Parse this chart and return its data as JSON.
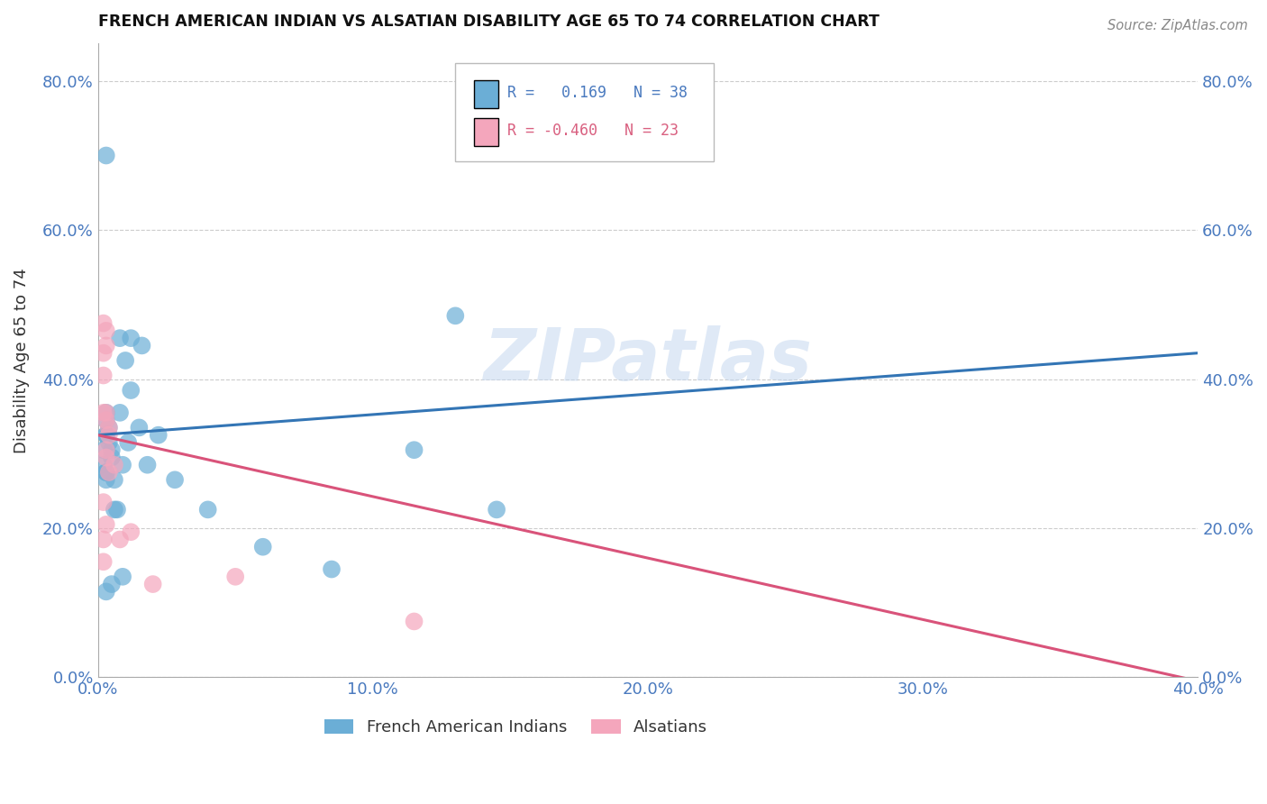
{
  "title": "FRENCH AMERICAN INDIAN VS ALSATIAN DISABILITY AGE 65 TO 74 CORRELATION CHART",
  "source": "Source: ZipAtlas.com",
  "ylabel": "Disability Age 65 to 74",
  "xlim": [
    0.0,
    0.4
  ],
  "ylim": [
    0.0,
    0.85
  ],
  "blue_color": "#6baed6",
  "pink_color": "#f4a6bc",
  "line_blue": "#3375b5",
  "line_pink": "#d9537a",
  "watermark_text": "ZIPatlas",
  "tick_color": "#4a7abf",
  "blue_line_x0": 0.0,
  "blue_line_y0": 0.325,
  "blue_line_x1": 0.4,
  "blue_line_y1": 0.435,
  "pink_line_x0": 0.0,
  "pink_line_y0": 0.325,
  "pink_line_x1": 0.4,
  "pink_line_y1": -0.005,
  "blue_points_x": [
    0.003,
    0.008,
    0.012,
    0.016,
    0.003,
    0.002,
    0.003,
    0.003,
    0.004,
    0.003,
    0.004,
    0.005,
    0.005,
    0.003,
    0.006,
    0.008,
    0.01,
    0.012,
    0.015,
    0.006,
    0.009,
    0.011,
    0.007,
    0.009,
    0.002,
    0.003,
    0.003,
    0.018,
    0.022,
    0.028,
    0.04,
    0.06,
    0.085,
    0.115,
    0.145,
    0.13,
    0.003,
    0.005
  ],
  "blue_points_y": [
    0.7,
    0.455,
    0.455,
    0.445,
    0.355,
    0.305,
    0.325,
    0.325,
    0.335,
    0.345,
    0.315,
    0.305,
    0.295,
    0.275,
    0.265,
    0.355,
    0.425,
    0.385,
    0.335,
    0.225,
    0.285,
    0.315,
    0.225,
    0.135,
    0.285,
    0.275,
    0.265,
    0.285,
    0.325,
    0.265,
    0.225,
    0.175,
    0.145,
    0.305,
    0.225,
    0.485,
    0.115,
    0.125
  ],
  "pink_points_x": [
    0.002,
    0.002,
    0.003,
    0.003,
    0.002,
    0.002,
    0.003,
    0.003,
    0.003,
    0.003,
    0.004,
    0.004,
    0.004,
    0.006,
    0.008,
    0.012,
    0.003,
    0.002,
    0.002,
    0.05,
    0.115,
    0.02,
    0.002
  ],
  "pink_points_y": [
    0.475,
    0.435,
    0.445,
    0.465,
    0.405,
    0.355,
    0.345,
    0.305,
    0.295,
    0.355,
    0.335,
    0.325,
    0.275,
    0.285,
    0.185,
    0.195,
    0.205,
    0.185,
    0.155,
    0.135,
    0.075,
    0.125,
    0.235
  ]
}
